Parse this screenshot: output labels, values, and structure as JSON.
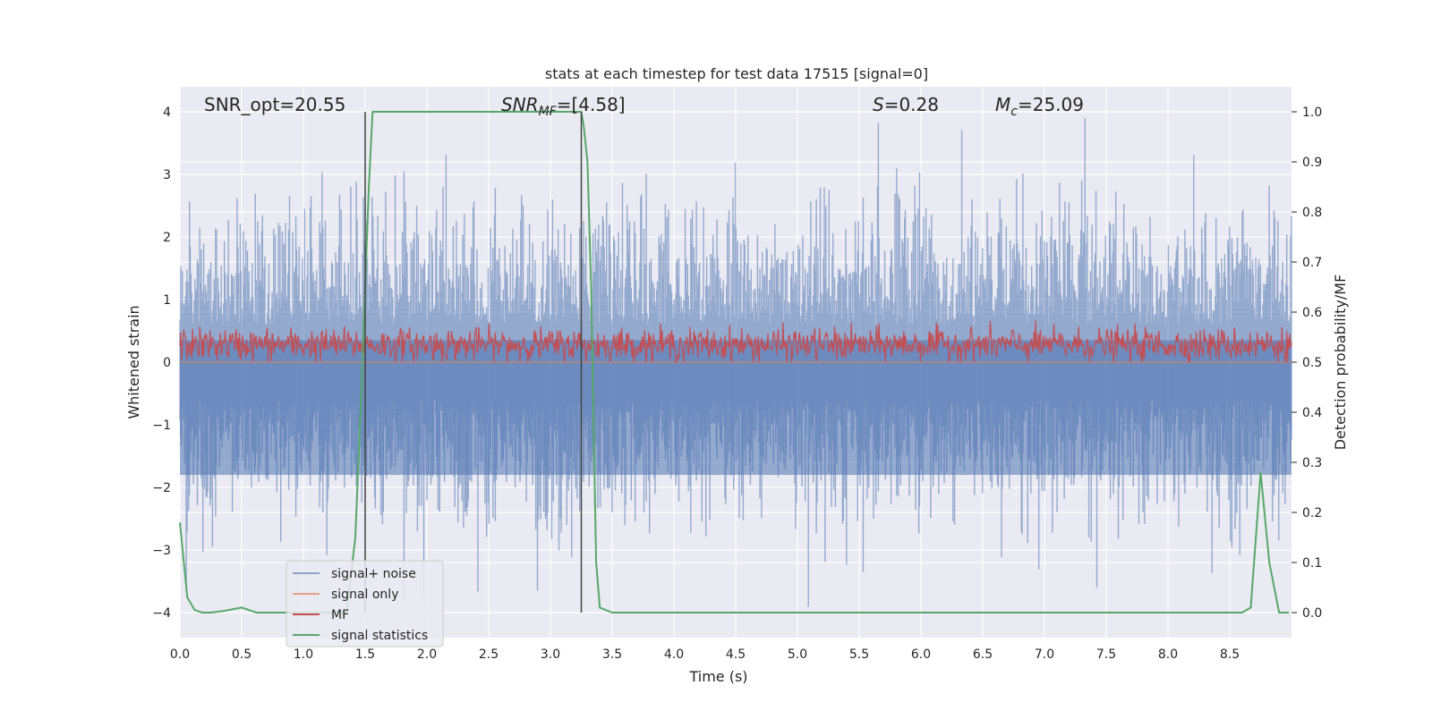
{
  "chart_data": {
    "type": "line",
    "title": "stats at each timestep for test data 17515 [signal=0]",
    "xlabel": "Time (s)",
    "ylabel": "Whitened strain",
    "ylabel_right": "Detection probability/MF",
    "xlim": [
      0,
      9.0
    ],
    "ylim": [
      -4.4,
      4.4
    ],
    "ylim_right": [
      -0.05,
      1.05
    ],
    "x_ticks": [
      0.0,
      0.5,
      1.0,
      1.5,
      2.0,
      2.5,
      3.0,
      3.5,
      4.0,
      4.5,
      5.0,
      5.5,
      6.0,
      6.5,
      7.0,
      7.5,
      8.0,
      8.5
    ],
    "x_tick_labels": [
      "0.0",
      "0.5",
      "1.0",
      "1.5",
      "2.0",
      "2.5",
      "3.0",
      "3.5",
      "4.0",
      "4.5",
      "5.0",
      "5.5",
      "6.0",
      "6.5",
      "7.0",
      "7.5",
      "8.0",
      "8.5"
    ],
    "y_ticks": [
      -4,
      -3,
      -2,
      -1,
      0,
      1,
      2,
      3,
      4
    ],
    "y_tick_labels": [
      "−4",
      "−3",
      "−2",
      "−1",
      "0",
      "1",
      "2",
      "3",
      "4"
    ],
    "y_right_ticks": [
      0.0,
      0.1,
      0.2,
      0.3,
      0.4,
      0.5,
      0.6,
      0.7,
      0.8,
      0.9,
      1.0
    ],
    "y_right_tick_labels": [
      "0.0",
      "0.1",
      "0.2",
      "0.3",
      "0.4",
      "0.5",
      "0.6",
      "0.7",
      "0.8",
      "0.9",
      "1.0"
    ],
    "grid": true,
    "legend_position": "bottom-left",
    "annotations": {
      "snr_opt": "SNR_opt=20.55",
      "snr_mf_sym": "SNR",
      "snr_mf_sub": "MF",
      "snr_mf_val": "=[4.58]",
      "s_sym": "S",
      "s_val": "=0.28",
      "mc_sym": "M",
      "mc_sub": "c",
      "mc_val": "=25.09"
    },
    "vertical_markers": [
      1.5,
      3.25
    ],
    "series": [
      {
        "name": "signal+ noise",
        "color": "#4c72b0",
        "kind": "noise",
        "description_range": [
          -4.0,
          3.9
        ]
      },
      {
        "name": "signal only",
        "color": "#dd8452",
        "kind": "flat",
        "values_constant": 0
      },
      {
        "name": "MF",
        "color": "#c44e52",
        "kind": "noise_positive",
        "description_range": [
          0.0,
          1.0
        ]
      },
      {
        "name": "signal statistics",
        "color": "#55a868",
        "kind": "probability",
        "x": [
          0.0,
          0.06,
          0.12,
          0.18,
          0.25,
          0.35,
          0.5,
          0.62,
          0.75,
          0.9,
          1.05,
          1.2,
          1.35,
          1.42,
          1.47,
          1.5,
          1.53,
          1.56,
          1.6,
          2.0,
          2.5,
          3.0,
          3.25,
          3.27,
          3.3,
          3.33,
          3.37,
          3.4,
          3.5,
          4.0,
          5.0,
          6.0,
          7.0,
          8.0,
          8.6,
          8.67,
          8.75,
          8.82,
          8.9,
          8.98
        ],
        "y": [
          0.18,
          0.03,
          0.005,
          0.0,
          0.0,
          0.003,
          0.01,
          0.0,
          0.0,
          0.0,
          0.0,
          0.0,
          0.0,
          0.15,
          0.45,
          0.65,
          0.85,
          1.0,
          1.0,
          1.0,
          1.0,
          1.0,
          1.0,
          0.97,
          0.9,
          0.65,
          0.1,
          0.01,
          0.0,
          0.0,
          0.0,
          0.0,
          0.0,
          0.0,
          0.0,
          0.01,
          0.28,
          0.1,
          0.0,
          0.0
        ]
      }
    ]
  }
}
